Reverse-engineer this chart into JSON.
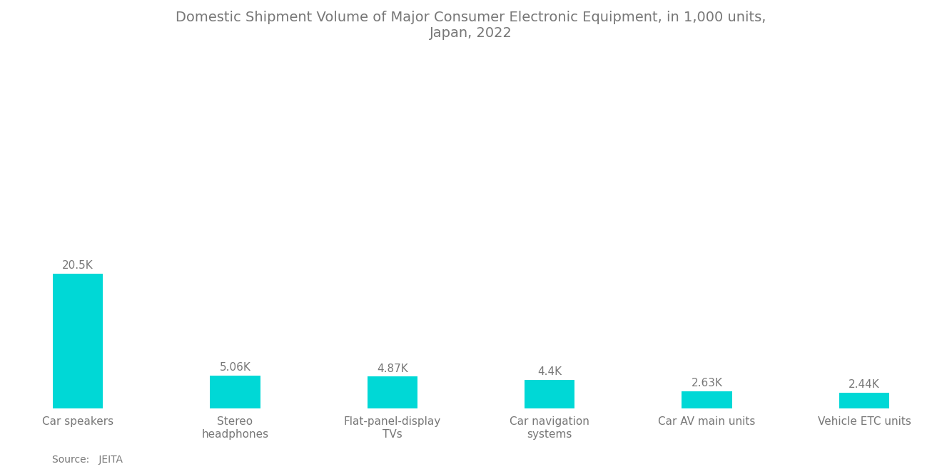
{
  "title": "Domestic Shipment Volume of Major Consumer Electronic Equipment, in 1,000 units,\nJapan, 2022",
  "categories": [
    "Car speakers",
    "Stereo\nheadphones",
    "Flat-panel-display\nTVs",
    "Car navigation\nsystems",
    "Car AV main units",
    "Vehicle ETC units"
  ],
  "values": [
    20500,
    5060,
    4870,
    4400,
    2630,
    2440
  ],
  "labels": [
    "20.5K",
    "5.06K",
    "4.87K",
    "4.4K",
    "2.63K",
    "2.44K"
  ],
  "bar_color": "#00D8D6",
  "background_color": "#FFFFFF",
  "title_color": "#777777",
  "label_color": "#777777",
  "tick_color": "#777777",
  "source_text": "Source:   JEITA",
  "ylim": [
    0,
    52000
  ],
  "bar_width": 0.32,
  "title_fontsize": 14,
  "label_fontsize": 11,
  "tick_fontsize": 11
}
